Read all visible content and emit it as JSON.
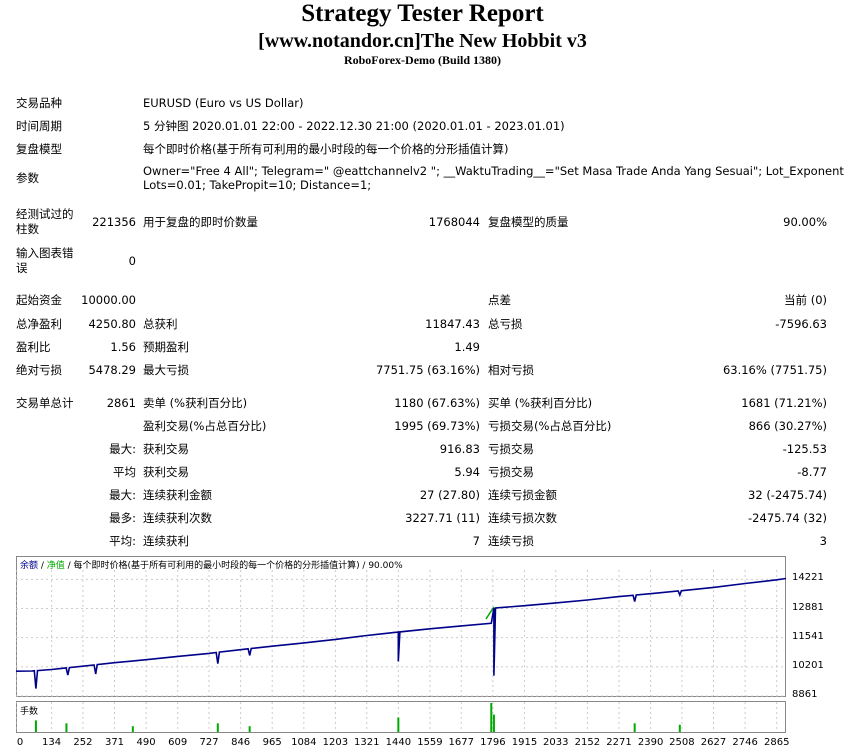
{
  "header": {
    "title": "Strategy Tester Report",
    "subtitle": "[www.notandor.cn]The New Hobbit v3",
    "server": "RoboForex-Demo (Build 1380)"
  },
  "info": {
    "symbol_label": "交易品种",
    "symbol_value": "EURUSD (Euro vs US Dollar)",
    "period_label": "时间周期",
    "period_value": "5 分钟图 2020.01.01 22:00 - 2022.12.30 21:00 (2020.01.01 - 2023.01.01)",
    "model_label": "复盘模型",
    "model_value": "每个即时价格(基于所有可利用的最小时段的每一个价格的分形插值计算)",
    "params_label": "参数",
    "params_line1": "Owner=\"Free 4 All\"; Telegram=\" @eattchannelv2 \"; __WaktuTrading__=\"Set Masa Trade Anda Yang Sesuai\"; Lot_Exponent=5;",
    "params_line2": "Lots=0.01; TakePropit=10; Distance=1;"
  },
  "stats1": {
    "bars_label_1": "经测试过的",
    "bars_label_2": "柱数",
    "bars_value": "221356",
    "ticks_label": "用于复盘的即时价数量",
    "ticks_value": "1768044",
    "quality_label": "复盘模型的质量",
    "quality_value": "90.00%",
    "errors_label_1": "输入图表错",
    "errors_label_2": "误",
    "errors_value": "0"
  },
  "stats2": {
    "deposit_label": "起始资金",
    "deposit_value": "10000.00",
    "spread_label": "点差",
    "spread_value": "当前 (0)",
    "netprofit_label": "总净盈利",
    "netprofit_value": "4250.80",
    "grossprofit_label": "总获利",
    "grossprofit_value": "11847.43",
    "grossloss_label": "总亏损",
    "grossloss_value": "-7596.63",
    "pf_label": "盈利比",
    "pf_value": "1.56",
    "expected_label": "预期盈利",
    "expected_value": "1.49",
    "absdd_label": "绝对亏损",
    "absdd_value": "5478.29",
    "maxdd_label": "最大亏损",
    "maxdd_value": "7751.75 (63.16%)",
    "reldd_label": "相对亏损",
    "reldd_value": "63.16% (7751.75)"
  },
  "stats3": {
    "total_label": "交易单总计",
    "total_value": "2861",
    "short_label": "卖单 (%获利百分比)",
    "short_value": "1180 (67.63%)",
    "long_label": "买单 (%获利百分比)",
    "long_value": "1681 (71.21%)",
    "profit_trades_label": "盈利交易(%占总百分比)",
    "profit_trades_value": "1995 (69.73%)",
    "loss_trades_label": "亏损交易(%占总百分比)",
    "loss_trades_value": "866 (30.27%)",
    "largest_label": "最大:",
    "largest_profit_label": "获利交易",
    "largest_profit_value": "916.83",
    "largest_loss_label": "亏损交易",
    "largest_loss_value": "-125.53",
    "average_label": "平均",
    "average_profit_label": "获利交易",
    "average_profit_value": "5.94",
    "average_loss_label": "亏损交易",
    "average_loss_value": "-8.77",
    "max1_label": "最大:",
    "max_consec_wins_money_label": "连续获利金额",
    "max_consec_wins_money_value": "27 (27.80)",
    "max_consec_loss_money_label": "连续亏损金额",
    "max_consec_loss_money_value": "32 (-2475.74)",
    "max2_label": "最多:",
    "max_consec_profit_count_label": "连续获利次数",
    "max_consec_profit_count_value": "3227.71 (11)",
    "max_consec_loss_count_label": "连续亏损次数",
    "max_consec_loss_count_value": "-2475.74 (32)",
    "avg_label": "平均:",
    "avg_consec_wins_label": "连续获利",
    "avg_consec_wins_value": "7",
    "avg_consec_losses_label": "连续亏损",
    "avg_consec_losses_value": "3"
  },
  "chart_data": {
    "type": "line",
    "legend_balance": "余额",
    "legend_sep1": " / ",
    "legend_equity": "净值",
    "legend_rest": " / 每个即时价格(基于所有可利用的最小时段的每一个价格的分形插值计算) / 90.00%",
    "volume_label": "手数",
    "x_ticks": [
      "0",
      "134",
      "252",
      "371",
      "490",
      "609",
      "727",
      "846",
      "965",
      "1084",
      "1203",
      "1321",
      "1440",
      "1559",
      "1677",
      "1796",
      "1915",
      "2033",
      "2152",
      "2271",
      "2390",
      "2508",
      "2627",
      "2746",
      "2865"
    ],
    "y_ticks": [
      "14221",
      "12881",
      "11541",
      "10201",
      "8861"
    ],
    "ylim": [
      8861,
      14650
    ],
    "xlim": [
      0,
      2900
    ],
    "balance_color": "#00008b",
    "equity_color": "#00aa00",
    "balance": [
      [
        0,
        10000
      ],
      [
        60,
        10010
      ],
      [
        134,
        10080
      ],
      [
        252,
        10230
      ],
      [
        371,
        10390
      ],
      [
        490,
        10530
      ],
      [
        609,
        10680
      ],
      [
        727,
        10820
      ],
      [
        846,
        10990
      ],
      [
        965,
        11150
      ],
      [
        1084,
        11300
      ],
      [
        1203,
        11460
      ],
      [
        1321,
        11640
      ],
      [
        1440,
        11800
      ],
      [
        1559,
        11950
      ],
      [
        1677,
        12080
      ],
      [
        1790,
        12200
      ],
      [
        1800,
        12900
      ],
      [
        1915,
        13010
      ],
      [
        2033,
        13140
      ],
      [
        2152,
        13270
      ],
      [
        2271,
        13430
      ],
      [
        2390,
        13560
      ],
      [
        2508,
        13700
      ],
      [
        2627,
        13850
      ],
      [
        2746,
        14030
      ],
      [
        2865,
        14200
      ],
      [
        2900,
        14260
      ]
    ],
    "dips": [
      [
        75,
        9200
      ],
      [
        195,
        9820
      ],
      [
        300,
        9870
      ],
      [
        760,
        10350
      ],
      [
        880,
        10720
      ],
      [
        1440,
        10450
      ],
      [
        1800,
        9800
      ],
      [
        2330,
        13200
      ],
      [
        2500,
        13500
      ]
    ],
    "equity_spike": [
      1770,
      1800,
      12400,
      12950
    ],
    "volume_spikes": [
      [
        75,
        0.4
      ],
      [
        190,
        0.3
      ],
      [
        440,
        0.2
      ],
      [
        760,
        0.3
      ],
      [
        880,
        0.2
      ],
      [
        1440,
        0.5
      ],
      [
        1790,
        1.0
      ],
      [
        1800,
        0.6
      ],
      [
        2330,
        0.3
      ],
      [
        2500,
        0.25
      ]
    ]
  }
}
